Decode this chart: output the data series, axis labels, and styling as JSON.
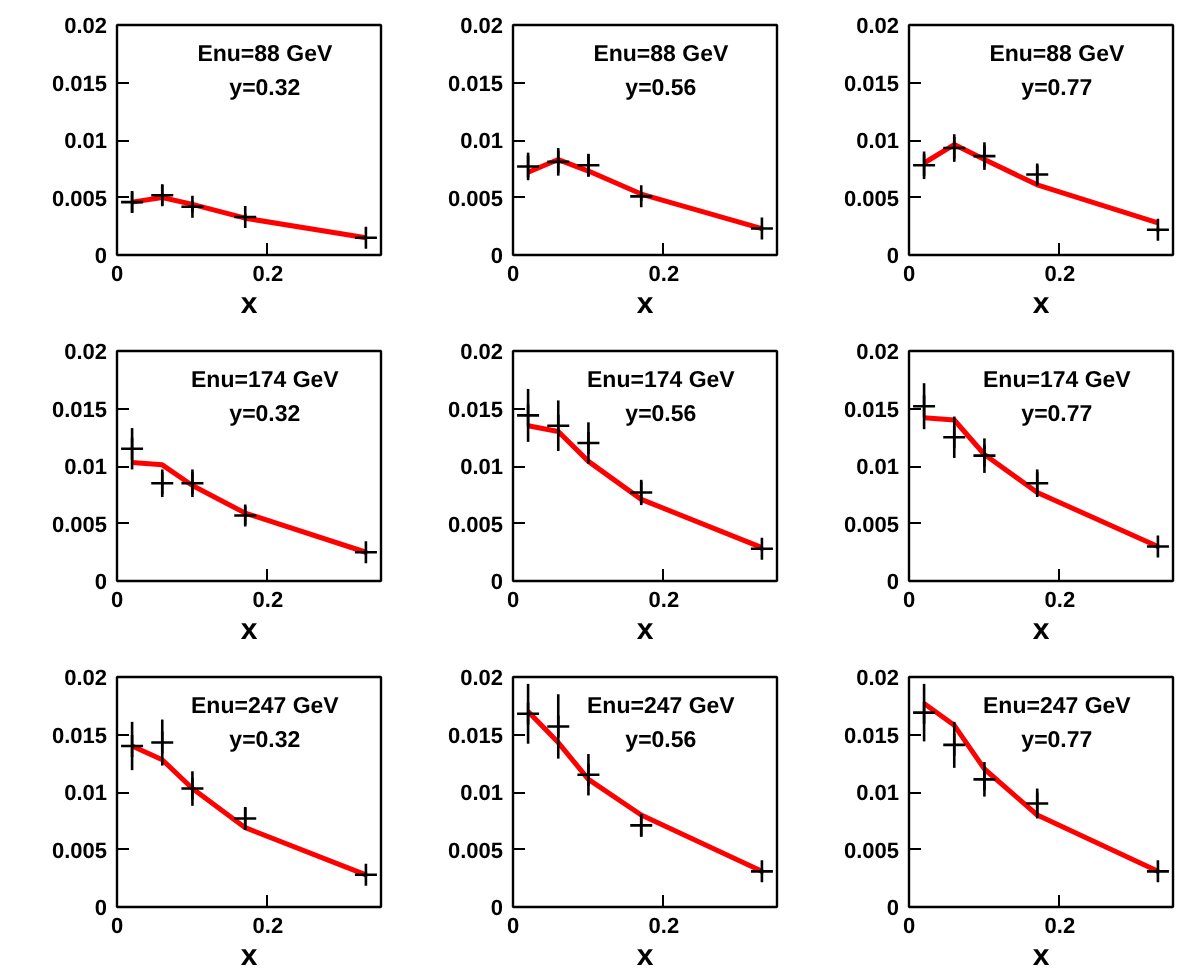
{
  "chart_data": [
    {
      "type": "scatter",
      "xlabel": "x",
      "annotations": [
        "Enu=88 GeV",
        "y=0.32"
      ],
      "x": [
        0.02,
        0.06,
        0.1,
        0.17,
        0.33
      ],
      "xlim": [
        0,
        0.35
      ],
      "ylim": [
        0,
        0.02
      ],
      "xticks": [
        0,
        0.2
      ],
      "yticks": [
        0,
        0.005,
        0.01,
        0.015,
        0.02
      ],
      "grid": false,
      "series": [
        {
          "marker": "cross",
          "color": "#000000",
          "values": [
            0.0046,
            0.0052,
            0.0042,
            0.0033,
            0.0015
          ],
          "errors": [
            0.0009,
            0.0009,
            0.0005,
            0.0003,
            0.0001
          ]
        },
        {
          "type": "line",
          "marker": "none",
          "color": "#ff0000",
          "values": [
            0.0046,
            0.005,
            0.0044,
            0.0032,
            0.0015
          ]
        }
      ]
    },
    {
      "type": "scatter",
      "xlabel": "x",
      "annotations": [
        "Enu=88 GeV",
        "y=0.56"
      ],
      "x": [
        0.02,
        0.06,
        0.1,
        0.17,
        0.33
      ],
      "xlim": [
        0,
        0.35
      ],
      "ylim": [
        0,
        0.02
      ],
      "xticks": [
        0,
        0.2
      ],
      "yticks": [
        0,
        0.005,
        0.01,
        0.015,
        0.02
      ],
      "grid": false,
      "series": [
        {
          "marker": "cross",
          "color": "#000000",
          "values": [
            0.0077,
            0.0081,
            0.0078,
            0.0051,
            0.0023
          ],
          "errors": [
            0.0012,
            0.0012,
            0.001,
            0.0004,
            0.0002
          ]
        },
        {
          "type": "line",
          "marker": "none",
          "color": "#ff0000",
          "values": [
            0.0072,
            0.0083,
            0.0073,
            0.0053,
            0.0023
          ]
        }
      ]
    },
    {
      "type": "scatter",
      "xlabel": "x",
      "annotations": [
        "Enu=88 GeV",
        "y=0.77"
      ],
      "x": [
        0.02,
        0.06,
        0.1,
        0.17,
        0.33
      ],
      "xlim": [
        0,
        0.35
      ],
      "ylim": [
        0,
        0.02
      ],
      "xticks": [
        0,
        0.2
      ],
      "yticks": [
        0,
        0.005,
        0.01,
        0.015,
        0.02
      ],
      "grid": false,
      "series": [
        {
          "marker": "cross",
          "color": "#000000",
          "values": [
            0.0078,
            0.0093,
            0.0086,
            0.007,
            0.0022
          ],
          "errors": [
            0.0012,
            0.0012,
            0.0012,
            0.0008,
            0.0002
          ]
        },
        {
          "type": "line",
          "marker": "none",
          "color": "#ff0000",
          "values": [
            0.008,
            0.0096,
            0.0083,
            0.0061,
            0.0028
          ]
        }
      ]
    },
    {
      "type": "scatter",
      "xlabel": "x",
      "annotations": [
        "Enu=174 GeV",
        "y=0.32"
      ],
      "x": [
        0.02,
        0.06,
        0.1,
        0.17,
        0.33
      ],
      "xlim": [
        0,
        0.35
      ],
      "ylim": [
        0,
        0.02
      ],
      "xticks": [
        0,
        0.2
      ],
      "yticks": [
        0,
        0.005,
        0.01,
        0.015,
        0.02
      ],
      "grid": false,
      "series": [
        {
          "marker": "cross",
          "color": "#000000",
          "values": [
            0.0115,
            0.0085,
            0.0085,
            0.0057,
            0.0025
          ],
          "errors": [
            0.0018,
            0.0012,
            0.0012,
            0.0008,
            0.0002
          ]
        },
        {
          "type": "line",
          "marker": "none",
          "color": "#ff0000",
          "values": [
            0.0103,
            0.0101,
            0.0083,
            0.0059,
            0.0025
          ]
        }
      ]
    },
    {
      "type": "scatter",
      "xlabel": "x",
      "annotations": [
        "Enu=174 GeV",
        "y=0.56"
      ],
      "x": [
        0.02,
        0.06,
        0.1,
        0.17,
        0.33
      ],
      "xlim": [
        0,
        0.35
      ],
      "ylim": [
        0,
        0.02
      ],
      "xticks": [
        0,
        0.2
      ],
      "yticks": [
        0,
        0.005,
        0.01,
        0.015,
        0.02
      ],
      "grid": false,
      "series": [
        {
          "marker": "cross",
          "color": "#000000",
          "values": [
            0.0144,
            0.0135,
            0.012,
            0.0077,
            0.0028
          ],
          "errors": [
            0.0023,
            0.0022,
            0.0018,
            0.0011,
            0.0002
          ]
        },
        {
          "type": "line",
          "marker": "none",
          "color": "#ff0000",
          "values": [
            0.0135,
            0.013,
            0.0104,
            0.0071,
            0.0029
          ]
        }
      ]
    },
    {
      "type": "scatter",
      "xlabel": "x",
      "annotations": [
        "Enu=174 GeV",
        "y=0.77"
      ],
      "x": [
        0.02,
        0.06,
        0.1,
        0.17,
        0.33
      ],
      "xlim": [
        0,
        0.35
      ],
      "ylim": [
        0,
        0.02
      ],
      "xticks": [
        0,
        0.2
      ],
      "yticks": [
        0,
        0.005,
        0.01,
        0.015,
        0.02
      ],
      "grid": false,
      "series": [
        {
          "marker": "cross",
          "color": "#000000",
          "values": [
            0.0152,
            0.0125,
            0.0109,
            0.0085,
            0.003
          ],
          "errors": [
            0.002,
            0.0018,
            0.0015,
            0.0012,
            0.0002
          ]
        },
        {
          "type": "line",
          "marker": "none",
          "color": "#ff0000",
          "values": [
            0.0142,
            0.014,
            0.011,
            0.0077,
            0.003
          ]
        }
      ]
    },
    {
      "type": "scatter",
      "xlabel": "x",
      "annotations": [
        "Enu=247 GeV",
        "y=0.32"
      ],
      "x": [
        0.02,
        0.06,
        0.1,
        0.17,
        0.33
      ],
      "xlim": [
        0,
        0.35
      ],
      "ylim": [
        0,
        0.02
      ],
      "xticks": [
        0,
        0.2
      ],
      "yticks": [
        0,
        0.005,
        0.01,
        0.015,
        0.02
      ],
      "grid": false,
      "series": [
        {
          "marker": "cross",
          "color": "#000000",
          "values": [
            0.014,
            0.0143,
            0.0103,
            0.0077,
            0.0028
          ],
          "errors": [
            0.0021,
            0.002,
            0.0015,
            0.001,
            0.0002
          ]
        },
        {
          "type": "line",
          "marker": "none",
          "color": "#ff0000",
          "values": [
            0.014,
            0.0128,
            0.0103,
            0.0069,
            0.0028
          ]
        }
      ]
    },
    {
      "type": "scatter",
      "xlabel": "x",
      "annotations": [
        "Enu=247 GeV",
        "y=0.56"
      ],
      "x": [
        0.02,
        0.06,
        0.1,
        0.17,
        0.33
      ],
      "xlim": [
        0,
        0.35
      ],
      "ylim": [
        0,
        0.02
      ],
      "xticks": [
        0,
        0.2
      ],
      "yticks": [
        0,
        0.005,
        0.01,
        0.015,
        0.02
      ],
      "grid": false,
      "series": [
        {
          "marker": "cross",
          "color": "#000000",
          "values": [
            0.0168,
            0.0157,
            0.0115,
            0.0071,
            0.0031
          ],
          "errors": [
            0.0026,
            0.0028,
            0.0018,
            0.001,
            0.0002
          ]
        },
        {
          "type": "line",
          "marker": "none",
          "color": "#ff0000",
          "values": [
            0.017,
            0.0143,
            0.0111,
            0.008,
            0.0031
          ]
        }
      ]
    },
    {
      "type": "scatter",
      "xlabel": "x",
      "annotations": [
        "Enu=247 GeV",
        "y=0.77"
      ],
      "x": [
        0.02,
        0.06,
        0.1,
        0.17,
        0.33
      ],
      "xlim": [
        0,
        0.35
      ],
      "ylim": [
        0,
        0.02
      ],
      "xticks": [
        0,
        0.2
      ],
      "yticks": [
        0,
        0.005,
        0.01,
        0.015,
        0.02
      ],
      "grid": false,
      "series": [
        {
          "marker": "cross",
          "color": "#000000",
          "values": [
            0.0169,
            0.0141,
            0.0111,
            0.009,
            0.0031
          ],
          "errors": [
            0.0025,
            0.002,
            0.0015,
            0.0013,
            0.0002
          ]
        },
        {
          "type": "line",
          "marker": "none",
          "color": "#ff0000",
          "values": [
            0.0177,
            0.0158,
            0.012,
            0.008,
            0.0031
          ]
        }
      ]
    }
  ]
}
